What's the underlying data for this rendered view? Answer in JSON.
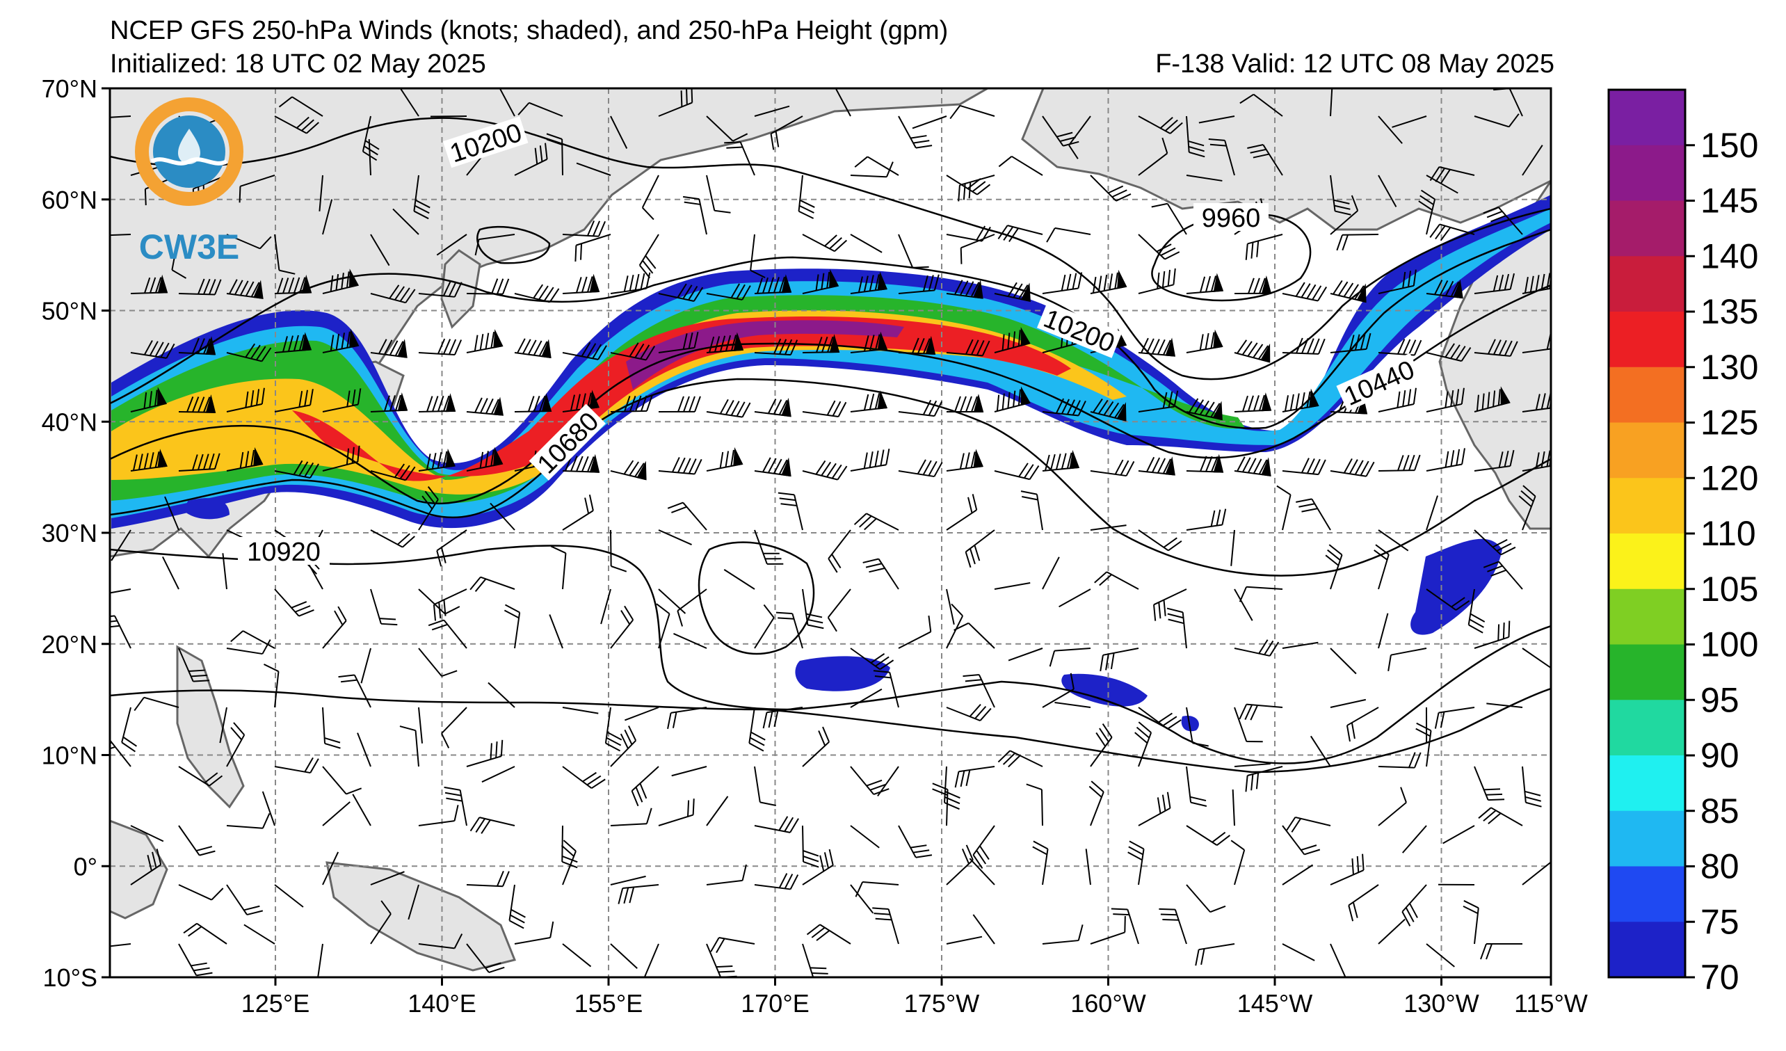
{
  "header": {
    "title": "NCEP GFS 250-hPa Winds (knots; shaded), and 250-hPa Height (gpm)",
    "initialized": "Initialized: 18 UTC 02 May 2025",
    "valid": "F-138  Valid: 12 UTC 08 May 2025"
  },
  "logo": {
    "text": "CW3E",
    "colors": {
      "ring": "#f4a233",
      "wave": "#2b8cc4"
    }
  },
  "map": {
    "lat_labels": [
      "70°N",
      "60°N",
      "50°N",
      "40°N",
      "30°N",
      "20°N",
      "10°N",
      "0°",
      "10°S"
    ],
    "lon_labels": [
      "125°E",
      "140°E",
      "155°E",
      "170°E",
      "175°W",
      "160°W",
      "145°W",
      "130°W",
      "115°W"
    ],
    "contour_labels": [
      "10200",
      "9960",
      "10200",
      "10680",
      "10440",
      "10920"
    ]
  },
  "colorbar": {
    "labels": [
      "150",
      "145",
      "140",
      "135",
      "130",
      "125",
      "120",
      "110",
      "105",
      "100",
      "95",
      "90",
      "85",
      "80",
      "75",
      "70"
    ],
    "colors": [
      "#7a1fa2",
      "#8c1a8a",
      "#a51c6a",
      "#c91d3c",
      "#ec1f24",
      "#f36f22",
      "#f8a122",
      "#fbc51b",
      "#fbf21a",
      "#7fcf23",
      "#27b42b",
      "#20d9a0",
      "#1ff0f0",
      "#1fb8f2",
      "#1f49f2",
      "#1d22c8"
    ]
  }
}
